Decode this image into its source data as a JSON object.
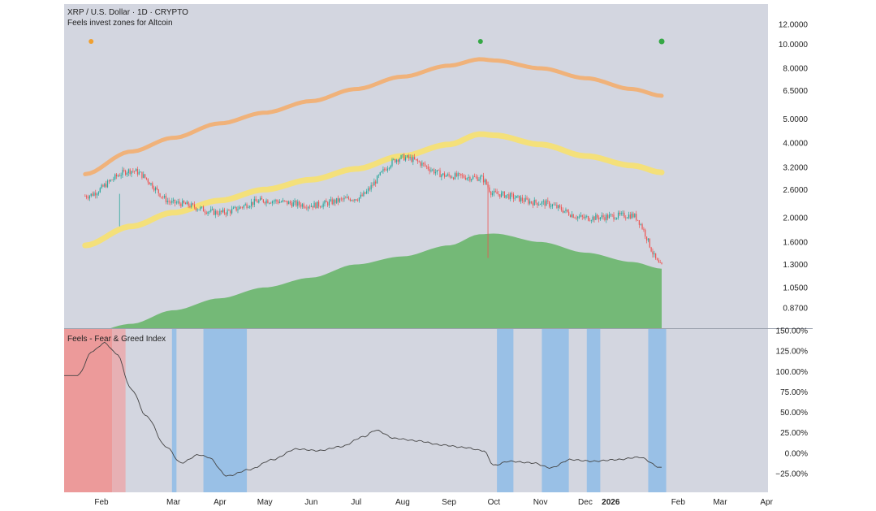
{
  "header": {
    "symbol_line": "XRP / U.S. Dollar · 1D · CRYPTO",
    "indicator_line": "Feels invest zones for Altcoin",
    "lower_title": "Feels - Fear & Greed Index"
  },
  "colors": {
    "background": "#d3d6e0",
    "orange_band": "#f0b27a",
    "yellow_band": "#f4e07a",
    "green_area": "#74b977",
    "candle_up": "#26a69a",
    "candle_down": "#ef5350",
    "fear_zone": "#99c0e6",
    "greed_zone": "#ec9a9a",
    "greed_zone_light": "#e7b0b4",
    "index_line": "#444444",
    "dot_orange": "#f0a030",
    "dot_green": "#35a845"
  },
  "chart_data": [
    {
      "type": "line",
      "name": "price-panel",
      "scale": "log",
      "x_tick_labels": [
        "Feb",
        "Mar",
        "Apr",
        "May",
        "Jun",
        "Jul",
        "Aug",
        "Sep",
        "Oct",
        "Nov",
        "Dec",
        "2026",
        "Feb",
        "Mar",
        "Apr"
      ],
      "y_ticks": [
        12.0,
        10.0,
        8.0,
        6.5,
        5.0,
        4.0,
        3.2,
        2.6,
        2.0,
        1.6,
        1.3,
        1.05,
        0.87
      ],
      "y_tick_labels": [
        "12.0000",
        "10.0000",
        "8.0000",
        "6.5000",
        "5.0000",
        "4.0000",
        "3.2000",
        "2.6000",
        "2.0000",
        "1.6000",
        "1.3000",
        "1.0500",
        "0.8700"
      ],
      "ylim": [
        0.72,
        14.5
      ],
      "x": [
        "2025-01-15",
        "2025-02-15",
        "2025-03-15",
        "2025-04-15",
        "2025-05-15",
        "2025-06-15",
        "2025-07-15",
        "2025-08-15",
        "2025-09-15",
        "2025-10-06",
        "2025-10-15",
        "2025-11-15",
        "2025-12-15",
        "2026-01-15",
        "2026-02-04"
      ],
      "series": [
        {
          "values": [
            3.0,
            3.7,
            4.2,
            4.8,
            5.3,
            5.9,
            6.6,
            7.4,
            8.2,
            8.7,
            8.6,
            8.0,
            7.3,
            6.6,
            6.2
          ]
        },
        {
          "values": [
            1.55,
            1.85,
            2.1,
            2.35,
            2.6,
            2.85,
            3.15,
            3.55,
            3.95,
            4.35,
            4.3,
            3.95,
            3.55,
            3.25,
            3.05
          ]
        },
        {
          "values": [
            0.68,
            0.75,
            0.85,
            0.95,
            1.05,
            1.15,
            1.3,
            1.4,
            1.55,
            1.72,
            1.73,
            1.6,
            1.45,
            1.33,
            1.25
          ]
        },
        {
          "values": [
            2.45,
            3.1,
            2.3,
            2.1,
            2.35,
            2.25,
            2.4,
            3.5,
            2.95,
            2.9,
            2.5,
            2.3,
            2.0,
            2.05,
            1.28
          ]
        }
      ],
      "markers": [
        {
          "x": "2025-01-19",
          "color": "#f0a030"
        },
        {
          "x": "2025-10-06",
          "color": "#35a845"
        },
        {
          "x": "2026-02-04",
          "color": "#35a845"
        }
      ]
    },
    {
      "type": "line",
      "name": "fear-greed-panel",
      "title": "Feels - Fear & Greed Index",
      "x_tick_labels": [
        "Feb",
        "Mar",
        "Apr",
        "May",
        "Jun",
        "Jul",
        "Aug",
        "Sep",
        "Oct",
        "Nov",
        "Dec",
        "2026",
        "Feb",
        "Mar",
        "Apr"
      ],
      "y_ticks": [
        150,
        125,
        100,
        75,
        50,
        25,
        0,
        -25
      ],
      "y_tick_labels": [
        "150.00%",
        "125.00%",
        "100.00%",
        "75.00%",
        "50.00%",
        "25.00%",
        "0.00%",
        "−25.00%"
      ],
      "ylim": [
        -48,
        152
      ],
      "x": [
        "2025-01-10",
        "2025-01-20",
        "2025-01-28",
        "2025-02-05",
        "2025-02-15",
        "2025-02-25",
        "2025-03-10",
        "2025-03-20",
        "2025-04-01",
        "2025-04-07",
        "2025-04-20",
        "2025-05-05",
        "2025-05-20",
        "2025-06-05",
        "2025-06-20",
        "2025-07-05",
        "2025-07-20",
        "2025-07-28",
        "2025-08-10",
        "2025-08-25",
        "2025-09-10",
        "2025-09-25",
        "2025-10-08",
        "2025-10-15",
        "2025-10-25",
        "2025-11-10",
        "2025-11-22",
        "2025-12-05",
        "2025-12-20",
        "2026-01-05",
        "2026-01-20",
        "2026-02-04"
      ],
      "values": [
        95,
        125,
        135,
        122,
        78,
        45,
        8,
        -12,
        -2,
        -5,
        -28,
        -20,
        -8,
        5,
        3,
        8,
        20,
        28,
        18,
        15,
        10,
        7,
        3,
        -15,
        -10,
        -12,
        -18,
        -8,
        -10,
        -8,
        -5,
        -18
      ],
      "fear_zones": [
        [
          "2025-03-14",
          "2025-03-17"
        ],
        [
          "2025-04-04",
          "2025-05-03"
        ],
        [
          "2025-10-17",
          "2025-10-28"
        ],
        [
          "2025-11-16",
          "2025-12-04"
        ],
        [
          "2025-12-16",
          "2025-12-25"
        ],
        [
          "2026-01-26",
          "2026-02-07"
        ]
      ],
      "greed_zones": [
        [
          "2025-01-01",
          "2025-02-02"
        ]
      ],
      "greed_zones_light": [
        [
          "2025-02-02",
          "2025-02-11"
        ]
      ]
    }
  ]
}
